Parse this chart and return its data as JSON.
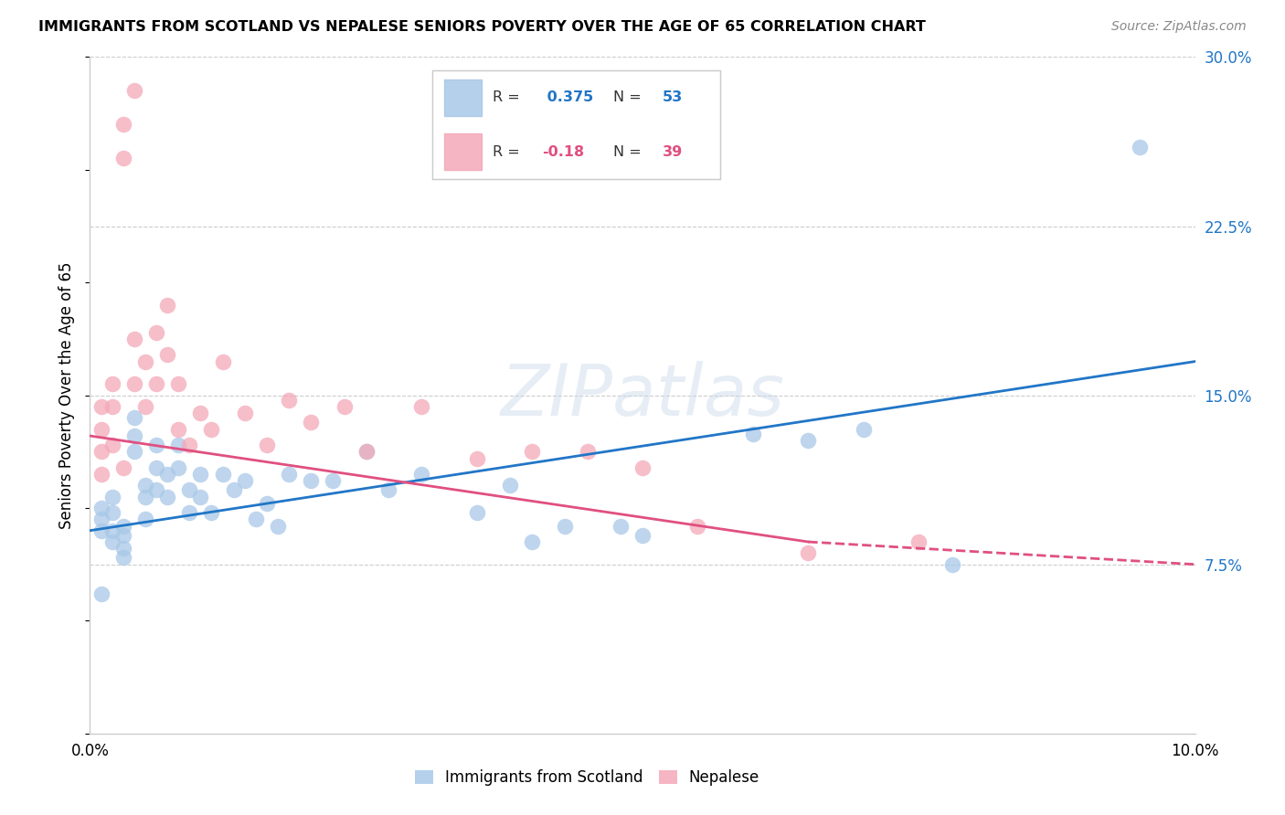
{
  "title": "IMMIGRANTS FROM SCOTLAND VS NEPALESE SENIORS POVERTY OVER THE AGE OF 65 CORRELATION CHART",
  "source": "Source: ZipAtlas.com",
  "ylabel": "Seniors Poverty Over the Age of 65",
  "xlim": [
    0.0,
    0.1
  ],
  "ylim": [
    0.0,
    0.3
  ],
  "scotland_R": 0.375,
  "scotland_N": 53,
  "nepalese_R": -0.18,
  "nepalese_N": 39,
  "scotland_color": "#a8c8e8",
  "nepalese_color": "#f4a8b8",
  "scotland_line_color": "#2176c7",
  "nepalese_line_color": "#e05080",
  "scotland_line": [
    0.0,
    0.09,
    0.1,
    0.165
  ],
  "nepalese_line_solid": [
    0.0,
    0.132,
    0.065,
    0.085
  ],
  "nepalese_line_dashed": [
    0.065,
    0.085,
    0.1,
    0.075
  ],
  "scot_x": [
    0.001,
    0.001,
    0.001,
    0.002,
    0.002,
    0.002,
    0.002,
    0.003,
    0.003,
    0.003,
    0.003,
    0.004,
    0.004,
    0.004,
    0.005,
    0.005,
    0.005,
    0.006,
    0.006,
    0.006,
    0.007,
    0.007,
    0.008,
    0.008,
    0.009,
    0.009,
    0.01,
    0.01,
    0.011,
    0.012,
    0.013,
    0.014,
    0.015,
    0.016,
    0.017,
    0.018,
    0.02,
    0.022,
    0.025,
    0.027,
    0.03,
    0.035,
    0.038,
    0.04,
    0.043,
    0.048,
    0.05,
    0.06,
    0.065,
    0.07,
    0.078,
    0.095,
    0.001
  ],
  "scot_y": [
    0.1,
    0.095,
    0.09,
    0.105,
    0.098,
    0.09,
    0.085,
    0.092,
    0.088,
    0.082,
    0.078,
    0.14,
    0.132,
    0.125,
    0.11,
    0.105,
    0.095,
    0.128,
    0.118,
    0.108,
    0.115,
    0.105,
    0.128,
    0.118,
    0.108,
    0.098,
    0.115,
    0.105,
    0.098,
    0.115,
    0.108,
    0.112,
    0.095,
    0.102,
    0.092,
    0.115,
    0.112,
    0.112,
    0.125,
    0.108,
    0.115,
    0.098,
    0.11,
    0.085,
    0.092,
    0.092,
    0.088,
    0.133,
    0.13,
    0.135,
    0.075,
    0.26,
    0.062
  ],
  "nep_x": [
    0.001,
    0.001,
    0.001,
    0.001,
    0.002,
    0.002,
    0.002,
    0.003,
    0.003,
    0.003,
    0.004,
    0.004,
    0.004,
    0.005,
    0.005,
    0.006,
    0.006,
    0.007,
    0.007,
    0.008,
    0.008,
    0.009,
    0.01,
    0.011,
    0.012,
    0.014,
    0.016,
    0.018,
    0.02,
    0.023,
    0.025,
    0.03,
    0.035,
    0.04,
    0.045,
    0.05,
    0.055,
    0.065,
    0.075
  ],
  "nep_y": [
    0.145,
    0.135,
    0.125,
    0.115,
    0.155,
    0.145,
    0.128,
    0.27,
    0.255,
    0.118,
    0.285,
    0.175,
    0.155,
    0.165,
    0.145,
    0.178,
    0.155,
    0.19,
    0.168,
    0.155,
    0.135,
    0.128,
    0.142,
    0.135,
    0.165,
    0.142,
    0.128,
    0.148,
    0.138,
    0.145,
    0.125,
    0.145,
    0.122,
    0.125,
    0.125,
    0.118,
    0.092,
    0.08,
    0.085
  ]
}
